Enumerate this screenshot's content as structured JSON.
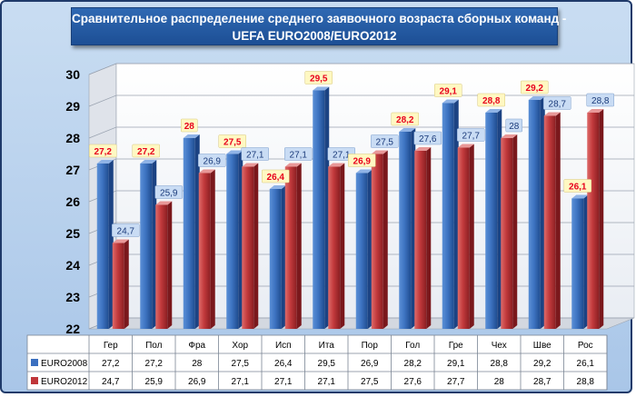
{
  "chart_data": {
    "type": "bar",
    "title_line1": "Сравнительное распределение среднего заявочного возраста сборных команд -",
    "title_line2": "UEFA EURO2008/EURO2012",
    "categories": [
      "Гер",
      "Пол",
      "Фра",
      "Хор",
      "Исп",
      "Ита",
      "Пор",
      "Гол",
      "Гре",
      "Чех",
      "Шве",
      "Рос"
    ],
    "series": [
      {
        "name": "EURO2008",
        "color": "#3b6fbf",
        "values": [
          27.2,
          27.2,
          28,
          27.5,
          26.4,
          29.5,
          26.9,
          28.2,
          29.1,
          28.8,
          29.2,
          26.1
        ],
        "labels": [
          "27,2",
          "27,2",
          "28",
          "27,5",
          "26,4",
          "29,5",
          "26,9",
          "28,2",
          "29,1",
          "28,8",
          "29,2",
          "26,1"
        ]
      },
      {
        "name": "EURO2012",
        "color": "#c0363a",
        "values": [
          24.7,
          25.9,
          26.9,
          27.1,
          27.1,
          27.1,
          27.5,
          27.6,
          27.7,
          28,
          28.7,
          28.8
        ],
        "labels": [
          "24,7",
          "25,9",
          "26,9",
          "27,1",
          "27,1",
          "27,1",
          "27,5",
          "27,6",
          "27,7",
          "28",
          "28,7",
          "28,8"
        ]
      }
    ],
    "ylim": [
      22,
      30
    ],
    "yticks": [
      22,
      23,
      24,
      25,
      26,
      27,
      28,
      29,
      30
    ],
    "grid": true,
    "legend": "data-table"
  }
}
